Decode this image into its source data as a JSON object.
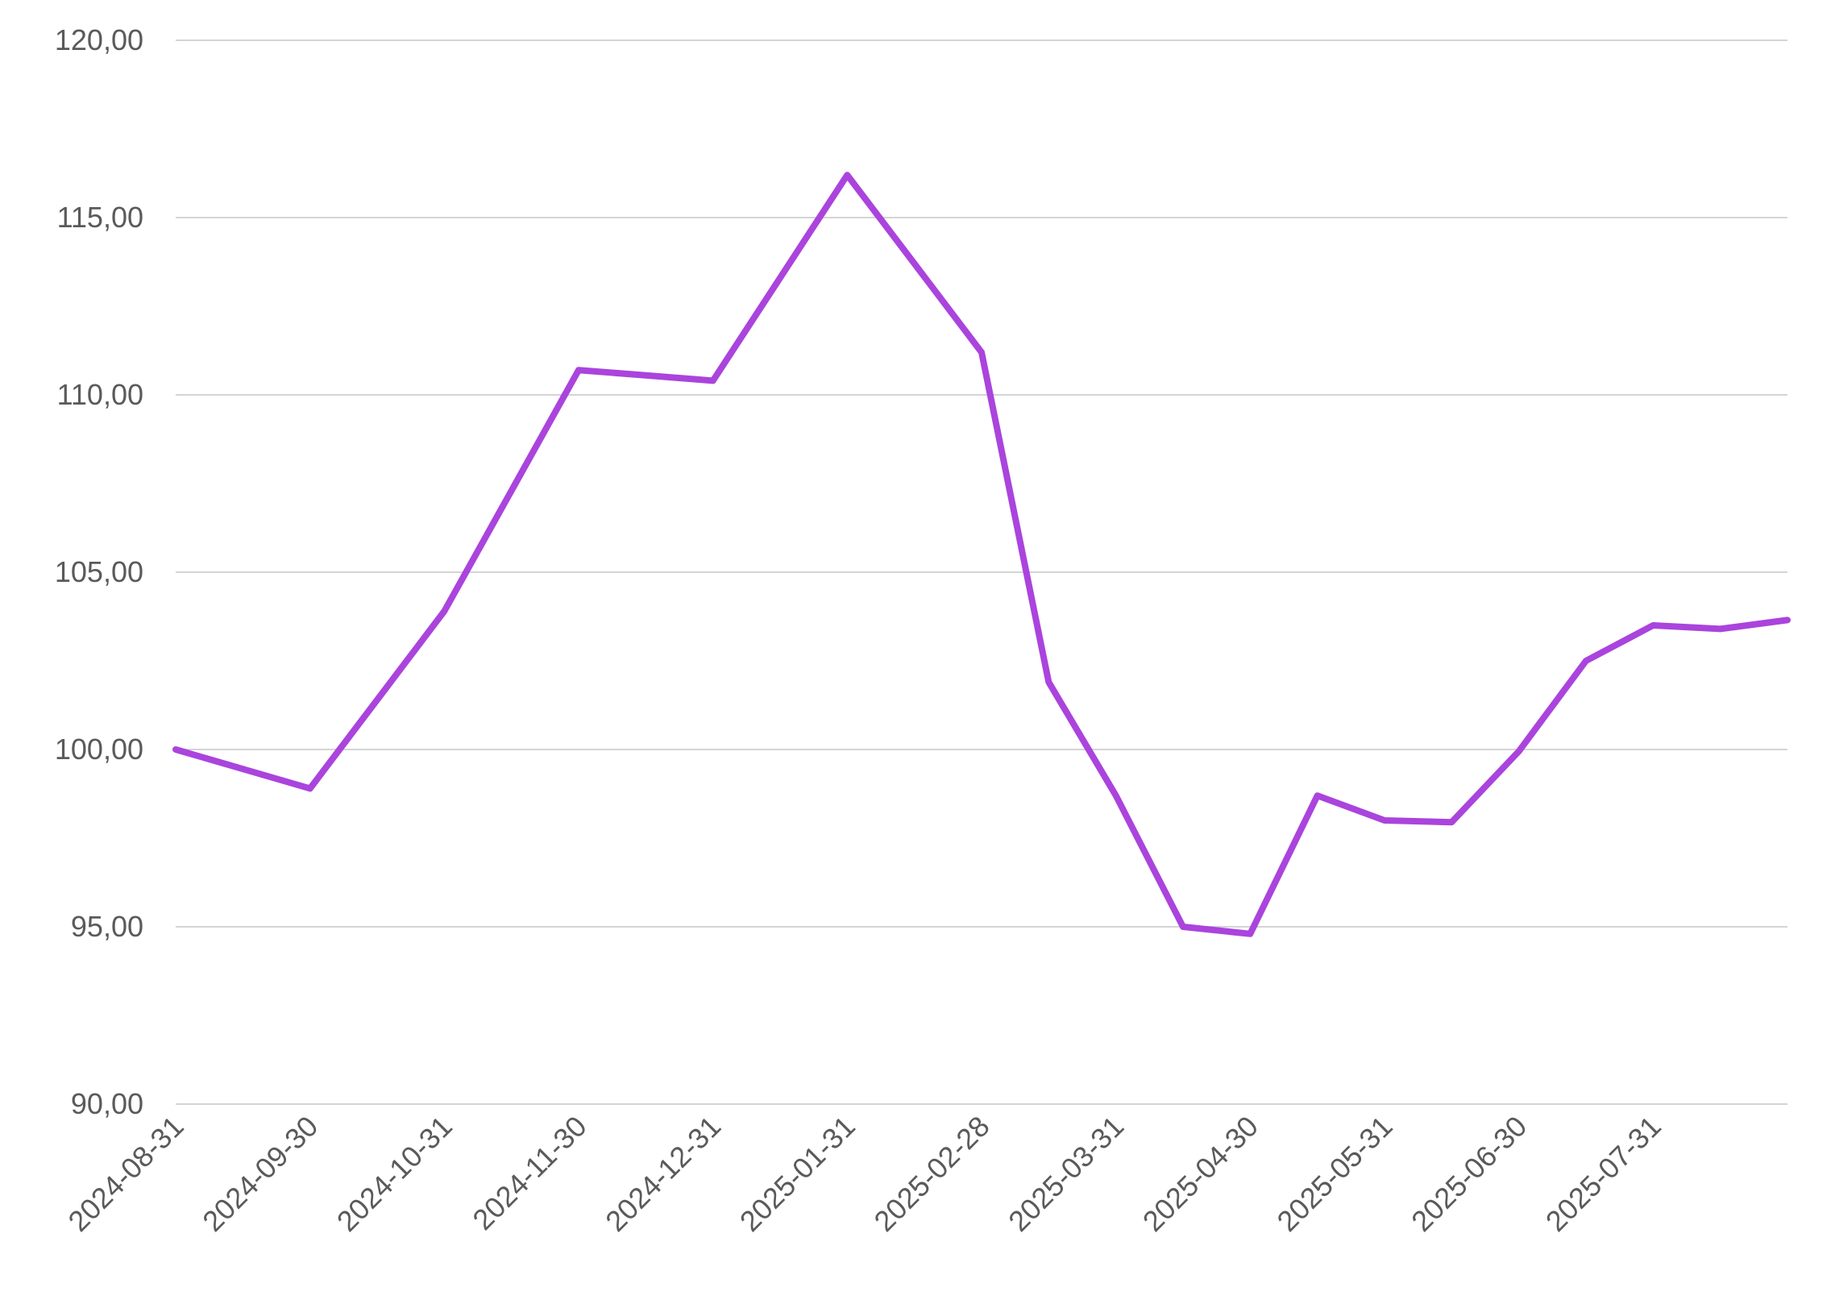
{
  "chart_data": {
    "type": "line",
    "title": "",
    "xlabel": "",
    "ylabel": "",
    "ylim": [
      90,
      120
    ],
    "y_ticks": [
      "90,00",
      "95,00",
      "100,00",
      "105,00",
      "110,00",
      "115,00",
      "120,00"
    ],
    "y_tick_values": [
      90,
      95,
      100,
      105,
      110,
      115,
      120
    ],
    "x_tick_labels": [
      "2024-08-31",
      "2024-09-30",
      "2024-10-31",
      "2024-11-30",
      "2024-12-31",
      "2025-01-31",
      "2025-02-28",
      "2025-03-31",
      "2025-04-30",
      "2025-05-31",
      "2025-06-30",
      "2025-07-31"
    ],
    "x_tick_index": [
      0,
      2,
      4,
      6,
      8,
      10,
      12,
      14,
      16,
      18,
      20,
      22
    ],
    "grid": true,
    "legend": "none",
    "color": "#aa44dd",
    "series": [
      {
        "values": [
          100.0,
          99.45,
          98.9,
          101.4,
          103.9,
          107.3,
          110.7,
          110.55,
          110.4,
          113.3,
          116.2,
          113.7,
          111.2,
          101.9,
          98.7,
          95.0,
          94.8,
          98.7,
          98.0,
          97.95,
          99.95,
          102.5,
          103.5,
          103.4,
          103.65
        ]
      }
    ]
  }
}
